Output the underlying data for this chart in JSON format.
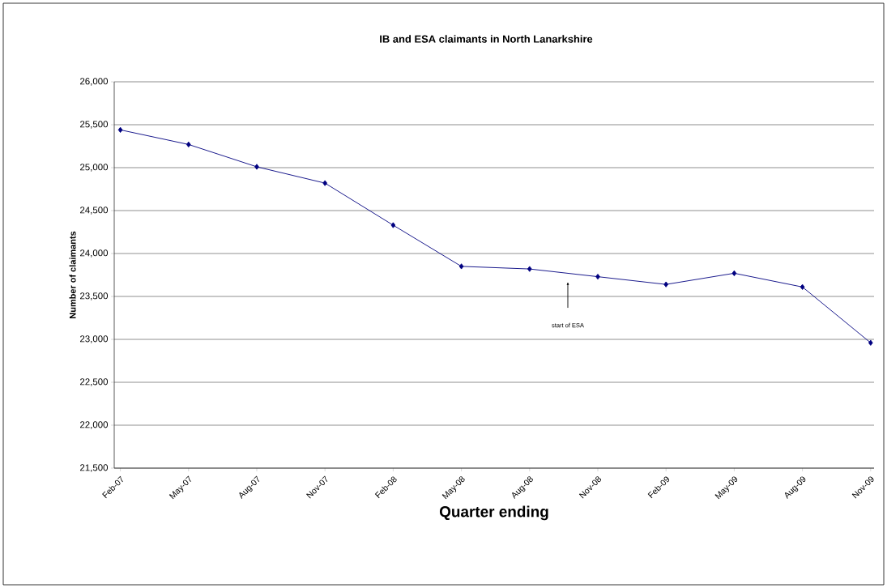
{
  "chart_data": {
    "type": "line",
    "title": "IB and ESA claimants in North Lanarkshire",
    "xlabel": "Quarter ending",
    "ylabel": "Number of claimants",
    "categories": [
      "Feb-07",
      "May-07",
      "Aug-07",
      "Nov-07",
      "Feb-08",
      "May-08",
      "Aug-08",
      "Nov-08",
      "Feb-09",
      "May-09",
      "Aug-09",
      "Nov-09"
    ],
    "values": [
      25440,
      25270,
      25010,
      24820,
      24330,
      23850,
      23820,
      23730,
      23640,
      23770,
      23610,
      22960
    ],
    "color": "#000080",
    "marker": "diamond",
    "line_style": "solid",
    "grid": "y",
    "ylim": [
      21500,
      26000
    ],
    "yticks": [
      {
        "value": 21500,
        "label": "21,500"
      },
      {
        "value": 22000,
        "label": "22,000"
      },
      {
        "value": 22500,
        "label": "22,500"
      },
      {
        "value": 23000,
        "label": "23,000"
      },
      {
        "value": 23500,
        "label": "23,500"
      },
      {
        "value": 24000,
        "label": "24,000"
      },
      {
        "value": 24500,
        "label": "24,500"
      },
      {
        "value": 25000,
        "label": "25,000"
      },
      {
        "value": 25500,
        "label": "25,500"
      },
      {
        "value": 26000,
        "label": "26,000"
      }
    ],
    "annotations": [
      "start of ESA"
    ]
  }
}
